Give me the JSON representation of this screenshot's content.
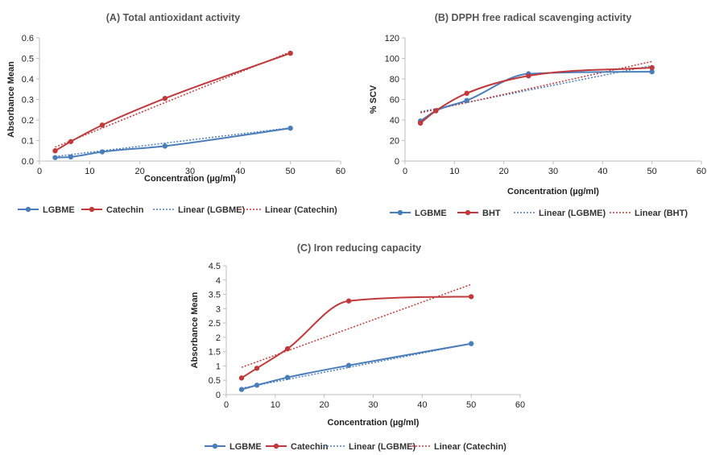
{
  "colors": {
    "lgbme": "#4a7ebb",
    "reference": "#c0393b",
    "axis": "#bfbfbf",
    "text": "#222222"
  },
  "chart_data": [
    {
      "type": "line",
      "title": "(A) Total antioxidant activity",
      "xlabel": "Concentration (µg/ml)",
      "ylabel": "Absorbance Mean",
      "xlim": [
        0,
        60
      ],
      "ylim": [
        0,
        0.6
      ],
      "xticks": [
        0,
        10,
        20,
        30,
        40,
        50,
        60
      ],
      "yticks": [
        0,
        0.1,
        0.2,
        0.3,
        0.4,
        0.5,
        0.6
      ],
      "ytick_labels": [
        "0.0",
        "0.1",
        "0.2",
        "0.3",
        "0.4",
        "0.5",
        "0.6"
      ],
      "x": [
        3.125,
        6.25,
        12.5,
        25,
        50
      ],
      "series": [
        {
          "name": "LGBME",
          "values": [
            0.017,
            0.02,
            0.045,
            0.073,
            0.16
          ]
        },
        {
          "name": "Catechin",
          "values": [
            0.05,
            0.095,
            0.175,
            0.305,
            0.525
          ]
        }
      ],
      "trendlines": [
        {
          "name": "Linear (LGBME)",
          "x": [
            3.125,
            50
          ],
          "y": [
            0.022,
            0.162
          ]
        },
        {
          "name": "Linear (Catechin)",
          "x": [
            3.125,
            50
          ],
          "y": [
            0.068,
            0.532
          ]
        }
      ],
      "grid": false,
      "legend_position": "bottom"
    },
    {
      "type": "line",
      "title": "(B) DPPH free radical scavenging activity",
      "xlabel": "Concentration (µg/ml)",
      "ylabel": "% SCV",
      "xlim": [
        0,
        60
      ],
      "ylim": [
        0,
        120
      ],
      "xticks": [
        0,
        10,
        20,
        30,
        40,
        50,
        60
      ],
      "yticks": [
        0,
        20,
        40,
        60,
        80,
        100,
        120
      ],
      "ytick_labels": [
        "0",
        "20",
        "40",
        "60",
        "80",
        "100",
        "120"
      ],
      "x": [
        3.125,
        6.25,
        12.5,
        25,
        50
      ],
      "series": [
        {
          "name": "LGBME",
          "values": [
            39,
            49,
            59,
            85,
            87
          ]
        },
        {
          "name": "BHT",
          "values": [
            37,
            49,
            66,
            83,
            91
          ]
        }
      ],
      "trendlines": [
        {
          "name": "Linear (LGBME)",
          "x": [
            3.125,
            50
          ],
          "y": [
            48,
            93
          ]
        },
        {
          "name": "Linear (BHT)",
          "x": [
            3.125,
            50
          ],
          "y": [
            47,
            97
          ]
        }
      ],
      "grid": false,
      "legend_position": "bottom"
    },
    {
      "type": "line",
      "title": "(C) Iron reducing capacity",
      "xlabel": "Concentration (µg/ml)",
      "ylabel": "Absorbance Mean",
      "xlim": [
        0,
        60
      ],
      "ylim": [
        0,
        4.5
      ],
      "xticks": [
        0,
        10,
        20,
        30,
        40,
        50,
        60
      ],
      "yticks": [
        0,
        0.5,
        1,
        1.5,
        2,
        2.5,
        3,
        3.5,
        4,
        4.5
      ],
      "ytick_labels": [
        "0",
        "0.5",
        "1",
        "1.5",
        "2",
        "2.5",
        "3",
        "3.5",
        "4",
        "4.5"
      ],
      "x": [
        3.125,
        6.25,
        12.5,
        25,
        50
      ],
      "series": [
        {
          "name": "LGBME",
          "values": [
            0.18,
            0.33,
            0.6,
            1.02,
            1.78
          ]
        },
        {
          "name": "Catechin",
          "values": [
            0.58,
            0.92,
            1.6,
            3.27,
            3.42
          ]
        }
      ],
      "trendlines": [
        {
          "name": "Linear (LGBME)",
          "x": [
            3.125,
            50
          ],
          "y": [
            0.22,
            1.78
          ]
        },
        {
          "name": "Linear (Catechin)",
          "x": [
            3.125,
            50
          ],
          "y": [
            0.95,
            3.85
          ]
        }
      ],
      "grid": false,
      "legend_position": "bottom"
    }
  ]
}
